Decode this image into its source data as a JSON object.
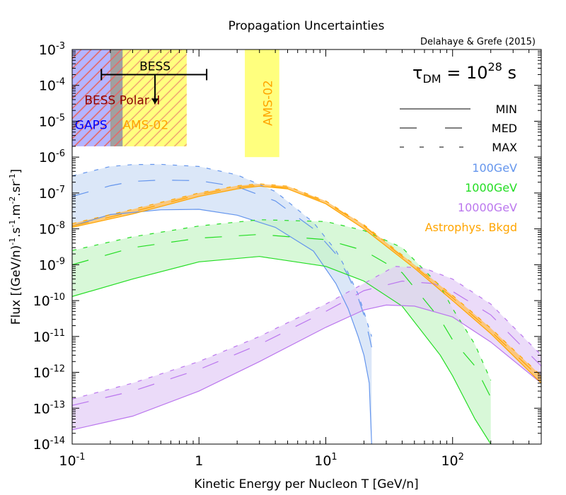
{
  "chart_data": {
    "type": "line",
    "title": "Propagation Uncertainties",
    "citation": "Delahaye & Grefe (2015)",
    "lifetime_label": {
      "base": "τ",
      "sub": "DM",
      "eq": " = 10",
      "sup": "28",
      "unit": " s"
    },
    "xlabel": "Kinetic Energy per Nucleon T [GeV/n]",
    "ylabel": "Flux [(GeV/n)-1.s-1.m-2.sr-1]",
    "ylabel_parts": [
      "Flux [(GeV/n)",
      "-1",
      ".s",
      "-1",
      ".m",
      "-2",
      ".sr",
      "-1",
      "]"
    ],
    "x_scale": "log",
    "y_scale": "log",
    "xlim": [
      0.1,
      500
    ],
    "ylim": [
      1e-14,
      0.001
    ],
    "x_ticks": [
      {
        "value": 0.1,
        "base": "10",
        "exp": "-1"
      },
      {
        "value": 1,
        "base": "1",
        "exp": ""
      },
      {
        "value": 10,
        "base": "10",
        "exp": "1"
      },
      {
        "value": 100,
        "base": "10",
        "exp": "2"
      }
    ],
    "y_ticks": [
      {
        "value": 0.001,
        "base": "10",
        "exp": "-3"
      },
      {
        "value": 0.0001,
        "base": "10",
        "exp": "-4"
      },
      {
        "value": 1e-05,
        "base": "10",
        "exp": "-5"
      },
      {
        "value": 1e-06,
        "base": "10",
        "exp": "-6"
      },
      {
        "value": 1e-07,
        "base": "10",
        "exp": "-7"
      },
      {
        "value": 1e-08,
        "base": "10",
        "exp": "-8"
      },
      {
        "value": 1e-09,
        "base": "10",
        "exp": "-9"
      },
      {
        "value": 1e-10,
        "base": "10",
        "exp": "-10"
      },
      {
        "value": 1e-11,
        "base": "10",
        "exp": "-11"
      },
      {
        "value": 1e-12,
        "base": "10",
        "exp": "-12"
      },
      {
        "value": 1e-13,
        "base": "10",
        "exp": "-13"
      },
      {
        "value": 1e-14,
        "base": "10",
        "exp": "-14"
      }
    ],
    "grid": false,
    "legend_position": "top-right",
    "legend_styles": [
      {
        "label": "MIN",
        "dash": "solid"
      },
      {
        "label": "MED",
        "dash": "long"
      },
      {
        "label": "MAX",
        "dash": "short"
      }
    ],
    "series": [
      {
        "name": "100GeV",
        "color": "#6495ED",
        "fill": "#CCDDF5",
        "min": [
          [
            0.1,
            1.2e-08
          ],
          [
            0.2,
            2.5e-08
          ],
          [
            0.5,
            3.4e-08
          ],
          [
            1,
            3.5e-08
          ],
          [
            2,
            2.4e-08
          ],
          [
            4,
            1.1e-08
          ],
          [
            8,
            2.4e-09
          ],
          [
            12,
            3e-10
          ],
          [
            15,
            6e-11
          ],
          [
            18,
            1e-11
          ],
          [
            20,
            3e-12
          ],
          [
            22,
            5e-13
          ],
          [
            23,
            1e-14
          ]
        ],
        "med": [
          [
            0.1,
            8e-08
          ],
          [
            0.2,
            1.6e-07
          ],
          [
            0.3,
            2.1e-07
          ],
          [
            0.5,
            2.3e-07
          ],
          [
            1,
            2.2e-07
          ],
          [
            2,
            1.5e-07
          ],
          [
            4,
            6e-08
          ],
          [
            8,
            1e-08
          ],
          [
            12,
            2e-09
          ],
          [
            15,
            5e-10
          ],
          [
            18,
            1.2e-10
          ],
          [
            20,
            4e-11
          ],
          [
            22,
            1e-11
          ],
          [
            23,
            5e-12
          ]
        ],
        "max": [
          [
            0.1,
            3e-07
          ],
          [
            0.2,
            5.5e-07
          ],
          [
            0.3,
            6.2e-07
          ],
          [
            0.5,
            6.3e-07
          ],
          [
            1,
            5.5e-07
          ],
          [
            2,
            3.2e-07
          ],
          [
            4,
            1.1e-07
          ],
          [
            8,
            1.5e-08
          ],
          [
            12,
            2.5e-09
          ],
          [
            15,
            6e-10
          ],
          [
            18,
            1.5e-10
          ],
          [
            20,
            5e-11
          ],
          [
            22,
            1.6e-11
          ],
          [
            23,
            1e-11
          ]
        ]
      },
      {
        "name": "1000GeV",
        "color": "#22DD22",
        "fill": "#C8F5C8",
        "min": [
          [
            0.1,
            1.3e-10
          ],
          [
            0.3,
            4e-10
          ],
          [
            1,
            1.2e-09
          ],
          [
            3,
            1.7e-09
          ],
          [
            10,
            9e-10
          ],
          [
            20,
            3.5e-10
          ],
          [
            40,
            7e-11
          ],
          [
            80,
            3e-12
          ],
          [
            100,
            8e-13
          ],
          [
            150,
            5e-14
          ],
          [
            200,
            1e-14
          ]
        ],
        "med": [
          [
            0.1,
            1e-09
          ],
          [
            0.3,
            3e-09
          ],
          [
            1,
            5.5e-09
          ],
          [
            3,
            7e-09
          ],
          [
            10,
            5e-09
          ],
          [
            20,
            2.5e-09
          ],
          [
            40,
            6e-10
          ],
          [
            80,
            3e-11
          ],
          [
            100,
            8e-12
          ],
          [
            150,
            1.5e-12
          ],
          [
            200,
            2e-13
          ]
        ],
        "max": [
          [
            0.1,
            2.5e-09
          ],
          [
            0.3,
            6e-09
          ],
          [
            1,
            1.2e-08
          ],
          [
            3,
            1.8e-08
          ],
          [
            10,
            1.6e-08
          ],
          [
            20,
            9e-09
          ],
          [
            40,
            3e-09
          ],
          [
            80,
            2.5e-10
          ],
          [
            100,
            6e-11
          ],
          [
            150,
            6e-12
          ],
          [
            200,
            6e-13
          ]
        ]
      },
      {
        "name": "10000GeV",
        "color": "#BB77EE",
        "fill": "#E3CCF7",
        "min": [
          [
            0.1,
            2.5e-14
          ],
          [
            0.3,
            6e-14
          ],
          [
            1,
            3e-13
          ],
          [
            3,
            2e-12
          ],
          [
            10,
            1.8e-11
          ],
          [
            20,
            5.5e-11
          ],
          [
            30,
            7.5e-11
          ],
          [
            50,
            7e-11
          ],
          [
            100,
            3.5e-11
          ],
          [
            200,
            7e-12
          ],
          [
            500,
            5e-13
          ]
        ],
        "med": [
          [
            0.1,
            1.2e-13
          ],
          [
            0.3,
            3e-13
          ],
          [
            1,
            1.2e-12
          ],
          [
            3,
            6e-12
          ],
          [
            10,
            5e-11
          ],
          [
            20,
            1.9e-10
          ],
          [
            40,
            3.5e-10
          ],
          [
            70,
            3e-10
          ],
          [
            100,
            1.8e-10
          ],
          [
            200,
            4e-11
          ],
          [
            500,
            1.5e-12
          ]
        ],
        "max": [
          [
            0.1,
            1.8e-13
          ],
          [
            0.3,
            5e-13
          ],
          [
            1,
            2e-12
          ],
          [
            3,
            1e-11
          ],
          [
            10,
            8e-11
          ],
          [
            20,
            3e-10
          ],
          [
            35,
            9e-10
          ],
          [
            60,
            8e-10
          ],
          [
            100,
            4e-10
          ],
          [
            200,
            8e-11
          ],
          [
            500,
            3e-12
          ]
        ]
      },
      {
        "name": "Astrophys. Bkgd",
        "color": "#FFA500",
        "fill": "#FFC266",
        "min": [
          [
            0.1,
            1.1e-08
          ],
          [
            0.3,
            2.6e-08
          ],
          [
            1,
            8e-08
          ],
          [
            2,
            1.3e-07
          ],
          [
            3,
            1.55e-07
          ],
          [
            5,
            1.3e-07
          ],
          [
            10,
            5e-08
          ],
          [
            20,
            1e-08
          ],
          [
            50,
            8e-10
          ],
          [
            100,
            1e-10
          ],
          [
            200,
            1.2e-11
          ],
          [
            500,
            5e-13
          ]
        ],
        "med": [
          [
            0.1,
            1.2e-08
          ],
          [
            0.3,
            3e-08
          ],
          [
            1,
            9e-08
          ],
          [
            2,
            1.45e-07
          ],
          [
            3,
            1.65e-07
          ],
          [
            5,
            1.4e-07
          ],
          [
            10,
            5.5e-08
          ],
          [
            20,
            1.2e-08
          ],
          [
            50,
            9e-10
          ],
          [
            100,
            1.2e-10
          ],
          [
            200,
            1.4e-11
          ],
          [
            500,
            6.5e-13
          ]
        ],
        "max": [
          [
            0.1,
            1.4e-08
          ],
          [
            0.3,
            3.5e-08
          ],
          [
            1,
            1e-07
          ],
          [
            2,
            1.6e-07
          ],
          [
            3,
            1.8e-07
          ],
          [
            5,
            1.55e-07
          ],
          [
            10,
            6e-08
          ],
          [
            20,
            1.3e-08
          ],
          [
            50,
            1e-09
          ],
          [
            100,
            1.4e-10
          ],
          [
            200,
            1.7e-11
          ],
          [
            500,
            8e-13
          ]
        ]
      }
    ],
    "experiments": [
      {
        "name": "GAPS",
        "color": "#0000FF",
        "fill": "#B0B0FF",
        "t_range": [
          0.1,
          0.25
        ],
        "flux_range": [
          2e-06,
          0.001
        ]
      },
      {
        "name": "BESS Polar II",
        "color": "#8B0000",
        "hatch": true,
        "t_range": [
          0.1,
          0.25
        ],
        "flux_range": [
          2e-06,
          0.001
        ]
      },
      {
        "name": "AMS-02",
        "color": "#FFA500",
        "fill": "#FFFF77",
        "t_range": [
          0.2,
          0.8
        ],
        "flux_range": [
          2e-06,
          0.001
        ]
      },
      {
        "name": "AMS-02",
        "color": "#FFA500",
        "fill": "#FFFF77",
        "vertical": true,
        "t_range": [
          2.3,
          4.3
        ],
        "flux_range": [
          1e-06,
          0.001
        ]
      }
    ],
    "bess": {
      "label": "BESS",
      "t_range": [
        0.17,
        1.15
      ],
      "flux": 0.0002,
      "arrow_t": 0.45,
      "arrow_to": 3e-05
    }
  }
}
